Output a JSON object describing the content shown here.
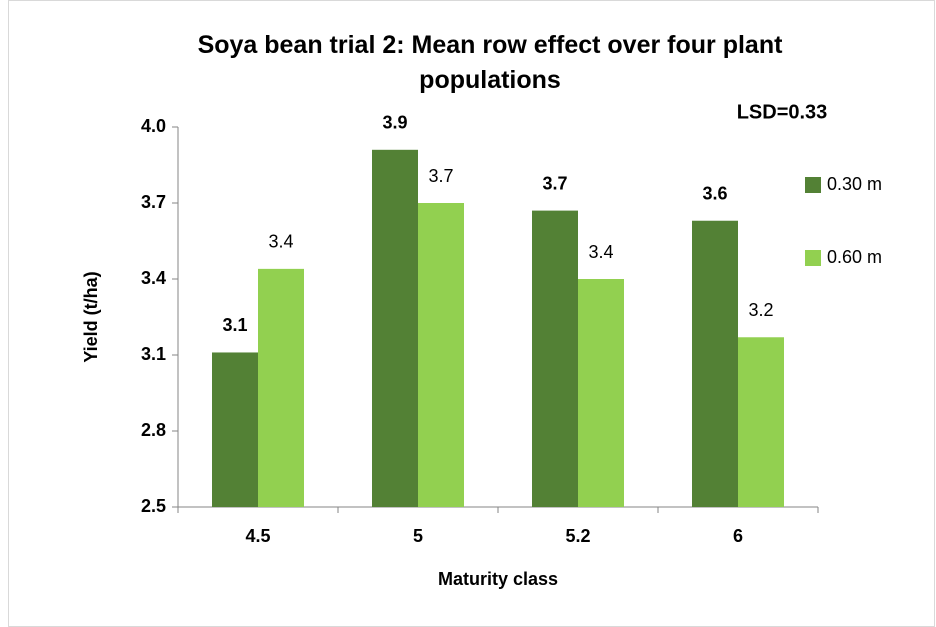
{
  "chart_data": {
    "type": "bar",
    "title": "Soya bean trial 2: Mean row effect over four plant populations",
    "annotation": "LSD=0.33",
    "x_label": "Maturity class",
    "y_label": "Yield (t/ha)",
    "categories": [
      "4.5",
      "5",
      "5.2",
      "6"
    ],
    "series": [
      {
        "name": "0.30 m",
        "color": "#538135",
        "values": [
          3.11,
          3.91,
          3.67,
          3.63
        ],
        "value_labels": [
          "3.1",
          "3.9",
          "3.7",
          "3.6"
        ]
      },
      {
        "name": "0.60 m",
        "color": "#92d050",
        "values": [
          3.44,
          3.7,
          3.4,
          3.17
        ],
        "value_labels": [
          "3.4",
          "3.7",
          "3.4",
          "3.2"
        ]
      }
    ],
    "ylim": [
      2.5,
      4.0
    ],
    "yticks": [
      2.5,
      2.8,
      3.1,
      3.4,
      3.7,
      {
        "value": 4.0,
        "label": "4.0"
      }
    ],
    "grid": false,
    "legend": "right"
  }
}
